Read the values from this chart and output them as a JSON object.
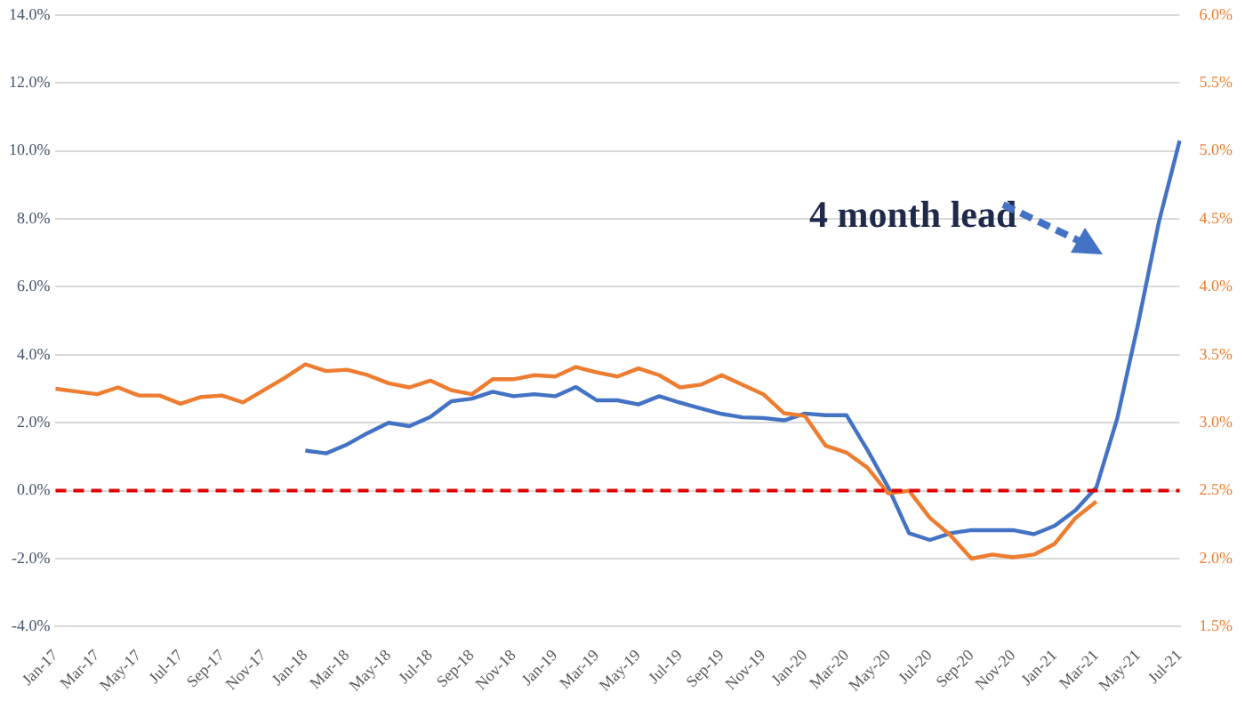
{
  "chart_data": {
    "type": "line",
    "categories": [
      "Jan-17",
      null,
      "Mar-17",
      null,
      "May-17",
      null,
      "Jul-17",
      null,
      "Sep-17",
      null,
      "Nov-17",
      null,
      "Jan-18",
      null,
      "Mar-18",
      null,
      "May-18",
      null,
      "Jul-18",
      null,
      "Sep-18",
      null,
      "Nov-18",
      null,
      "Jan-19",
      null,
      "Mar-19",
      null,
      "May-19",
      null,
      "Jul-19",
      null,
      "Sep-19",
      null,
      "Nov-19",
      null,
      "Jan-20",
      null,
      "Mar-20",
      null,
      "May-20",
      null,
      "Jul-20",
      null,
      "Sep-20",
      null,
      "Nov-20",
      null,
      "Jan-21",
      null,
      "Mar-21",
      null,
      "May-21",
      null,
      "Jul-21"
    ],
    "series": [
      {
        "color": "#ed7d31",
        "axis": "y2",
        "values": [
          3.25,
          3.23,
          3.21,
          3.26,
          3.2,
          3.2,
          3.14,
          3.19,
          3.2,
          3.15,
          3.24,
          3.33,
          3.43,
          3.38,
          3.39,
          3.35,
          3.29,
          3.26,
          3.31,
          3.24,
          3.21,
          3.32,
          3.32,
          3.35,
          3.34,
          3.41,
          3.37,
          3.34,
          3.4,
          3.35,
          3.26,
          3.28,
          3.35,
          3.28,
          3.21,
          3.07,
          3.05,
          2.83,
          2.78,
          2.67,
          2.48,
          2.5,
          2.3,
          2.17,
          2.0,
          2.03,
          2.01,
          2.03,
          2.11,
          2.3,
          2.42,
          null,
          null,
          null,
          null
        ]
      },
      {
        "color": "#4472c4",
        "axis": "y",
        "values": [
          null,
          null,
          null,
          null,
          null,
          null,
          null,
          null,
          null,
          null,
          null,
          null,
          1.18,
          1.1,
          1.36,
          1.7,
          2.0,
          1.9,
          2.17,
          2.63,
          2.71,
          2.91,
          2.78,
          2.84,
          2.78,
          3.05,
          2.66,
          2.66,
          2.54,
          2.78,
          2.59,
          2.42,
          2.26,
          2.16,
          2.14,
          2.07,
          2.27,
          2.22,
          2.22,
          1.2,
          0.1,
          -1.25,
          -1.45,
          -1.25,
          -1.16,
          -1.16,
          -1.16,
          -1.28,
          -1.03,
          -0.57,
          0.1,
          2.12,
          4.9,
          7.9,
          10.3
        ]
      }
    ],
    "ylim": [
      -4,
      14
    ],
    "yticks": [
      {
        "value": -4,
        "label": "-4.0%"
      },
      {
        "value": -2,
        "label": "-2.0%"
      },
      {
        "value": 0,
        "label": "0.0%"
      },
      {
        "value": 2,
        "label": "2.0%"
      },
      {
        "value": 4,
        "label": "4.0%"
      },
      {
        "value": 6,
        "label": "6.0%"
      },
      {
        "value": 8,
        "label": "8.0%"
      },
      {
        "value": 10,
        "label": "10.0%"
      },
      {
        "value": 12,
        "label": "12.0%"
      },
      {
        "value": 14,
        "label": "14.0%"
      }
    ],
    "y2lim": [
      1.5,
      6
    ],
    "y2ticks": [
      {
        "value": 1.5,
        "label": "1.5%"
      },
      {
        "value": 2,
        "label": "2.0%"
      },
      {
        "value": 2.5,
        "label": "2.5%"
      },
      {
        "value": 3,
        "label": "3.0%"
      },
      {
        "value": 3.5,
        "label": "3.5%"
      },
      {
        "value": 4,
        "label": "4.0%"
      },
      {
        "value": 4.5,
        "label": "4.5%"
      },
      {
        "value": 5,
        "label": "5.0%"
      },
      {
        "value": 5.5,
        "label": "5.5%"
      },
      {
        "value": 6,
        "label": "6.0%"
      }
    ],
    "ref_lines": [
      {
        "axis": "y",
        "value": 0,
        "color": "#e00000",
        "line_style": "dashed"
      }
    ],
    "annotations": [
      "4 month lead"
    ],
    "grid": "y",
    "legend": false,
    "marker": "none",
    "line_style": "solid"
  }
}
